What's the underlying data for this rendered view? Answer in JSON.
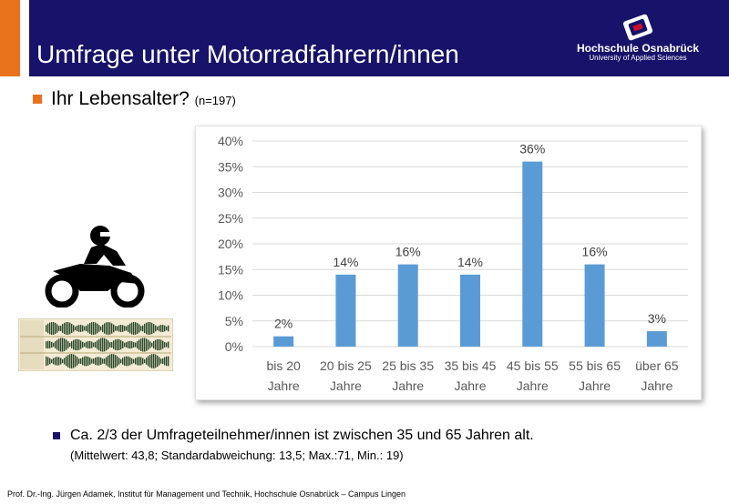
{
  "header": {
    "title": "Umfrage unter Motorradfahrern/innen",
    "logo_name": "Hochschule Osnabrück",
    "logo_sub": "University of Applied Sciences"
  },
  "heading": {
    "question": "Ihr Lebensalter?",
    "sample": "(n=197)"
  },
  "summary": {
    "text": "Ca. 2/3 der Umfrageteilnehmer/innen ist zwischen 35 und 65 Jahren alt.",
    "stats": "(Mittelwert: 43,8; Standardabweichung:  13,5; Max.:71, Min.: 19)"
  },
  "footer": "Prof. Dr.-Ing. Jürgen Adamek,  Institut für Management und Technik, Hochschule Osnabrück – Campus Lingen",
  "colors": {
    "header": "#17126a",
    "accent": "#e8731c",
    "bar": "#5b9bd5"
  },
  "icons": [
    "motorcycle-rider-icon",
    "audio-waveform-icon",
    "university-logo-icon"
  ],
  "chart_data": {
    "type": "bar",
    "categories": [
      [
        "bis 20",
        "Jahre"
      ],
      [
        "20 bis 25",
        "Jahre"
      ],
      [
        "25 bis 35",
        "Jahre"
      ],
      [
        "35 bis 45",
        "Jahre"
      ],
      [
        "45 bis 55",
        "Jahre"
      ],
      [
        "55 bis 65",
        "Jahre"
      ],
      [
        "über 65",
        "Jahre"
      ]
    ],
    "values": [
      2,
      14,
      16,
      14,
      36,
      16,
      3
    ],
    "data_labels": [
      "2%",
      "14%",
      "16%",
      "14%",
      "36%",
      "16%",
      "3%"
    ],
    "ylim": [
      0,
      40
    ],
    "yticks": [
      "0%",
      "5%",
      "10%",
      "15%",
      "20%",
      "25%",
      "30%",
      "35%",
      "40%"
    ],
    "grid": true,
    "legend": "none"
  }
}
